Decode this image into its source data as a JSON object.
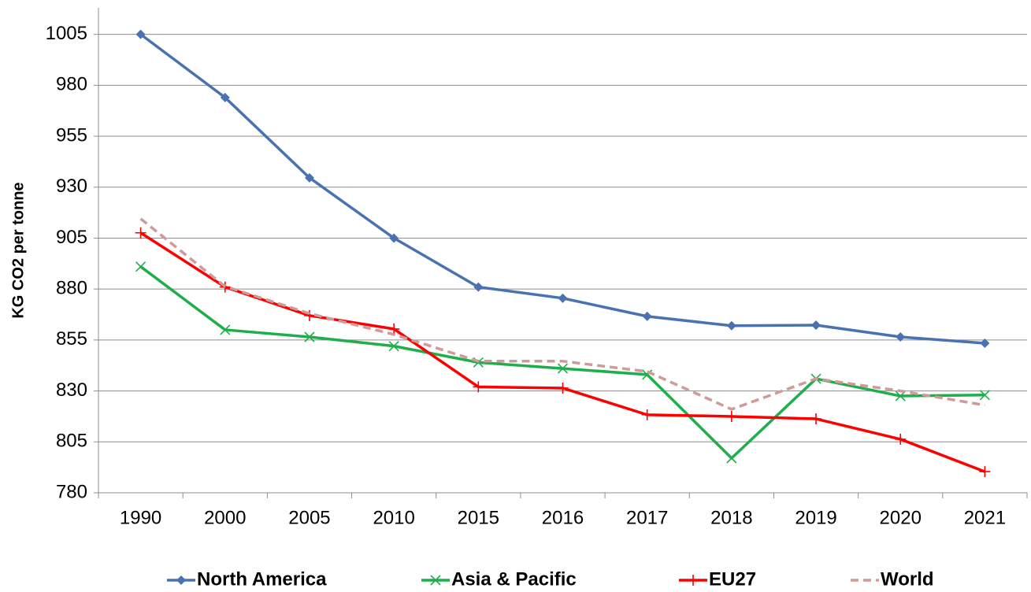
{
  "chart_data": {
    "type": "line",
    "y_label": "KG CO2 per tonne",
    "categories": [
      "1990",
      "2000",
      "2005",
      "2010",
      "2015",
      "2016",
      "2017",
      "2018",
      "2019",
      "2020",
      "2021"
    ],
    "series": [
      {
        "name": "North America",
        "color": "#4a72b0",
        "marker": "diamond",
        "line_style": "solid",
        "values": [
          1005,
          974,
          934.6,
          905,
          881,
          875.5,
          866.6,
          862,
          862.3,
          856.5,
          853.4
        ]
      },
      {
        "name": "Asia & Pacific",
        "color": "#1fae4c",
        "marker": "x",
        "line_style": "solid",
        "values": [
          891,
          860,
          856.5,
          852,
          844,
          841,
          838,
          797,
          836,
          827.5,
          828
        ]
      },
      {
        "name": "EU27",
        "color": "#ff0000",
        "marker": "plus",
        "line_style": "solid",
        "values": [
          907.6,
          881,
          867,
          860.4,
          832,
          831.4,
          818.3,
          817.5,
          816.3,
          806.3,
          790.4
        ]
      },
      {
        "name": "World",
        "color": "#d09a9a",
        "marker": "none",
        "line_style": "dashed",
        "values": [
          914.5,
          881.3,
          868,
          857.7,
          844.6,
          844.6,
          839.5,
          821,
          836,
          830,
          823
        ]
      }
    ],
    "ylim": [
      780,
      1018
    ],
    "yticks": [
      780,
      805,
      830,
      855,
      880,
      905,
      930,
      955,
      980,
      1005
    ],
    "grid": true,
    "legend": "bottom"
  }
}
